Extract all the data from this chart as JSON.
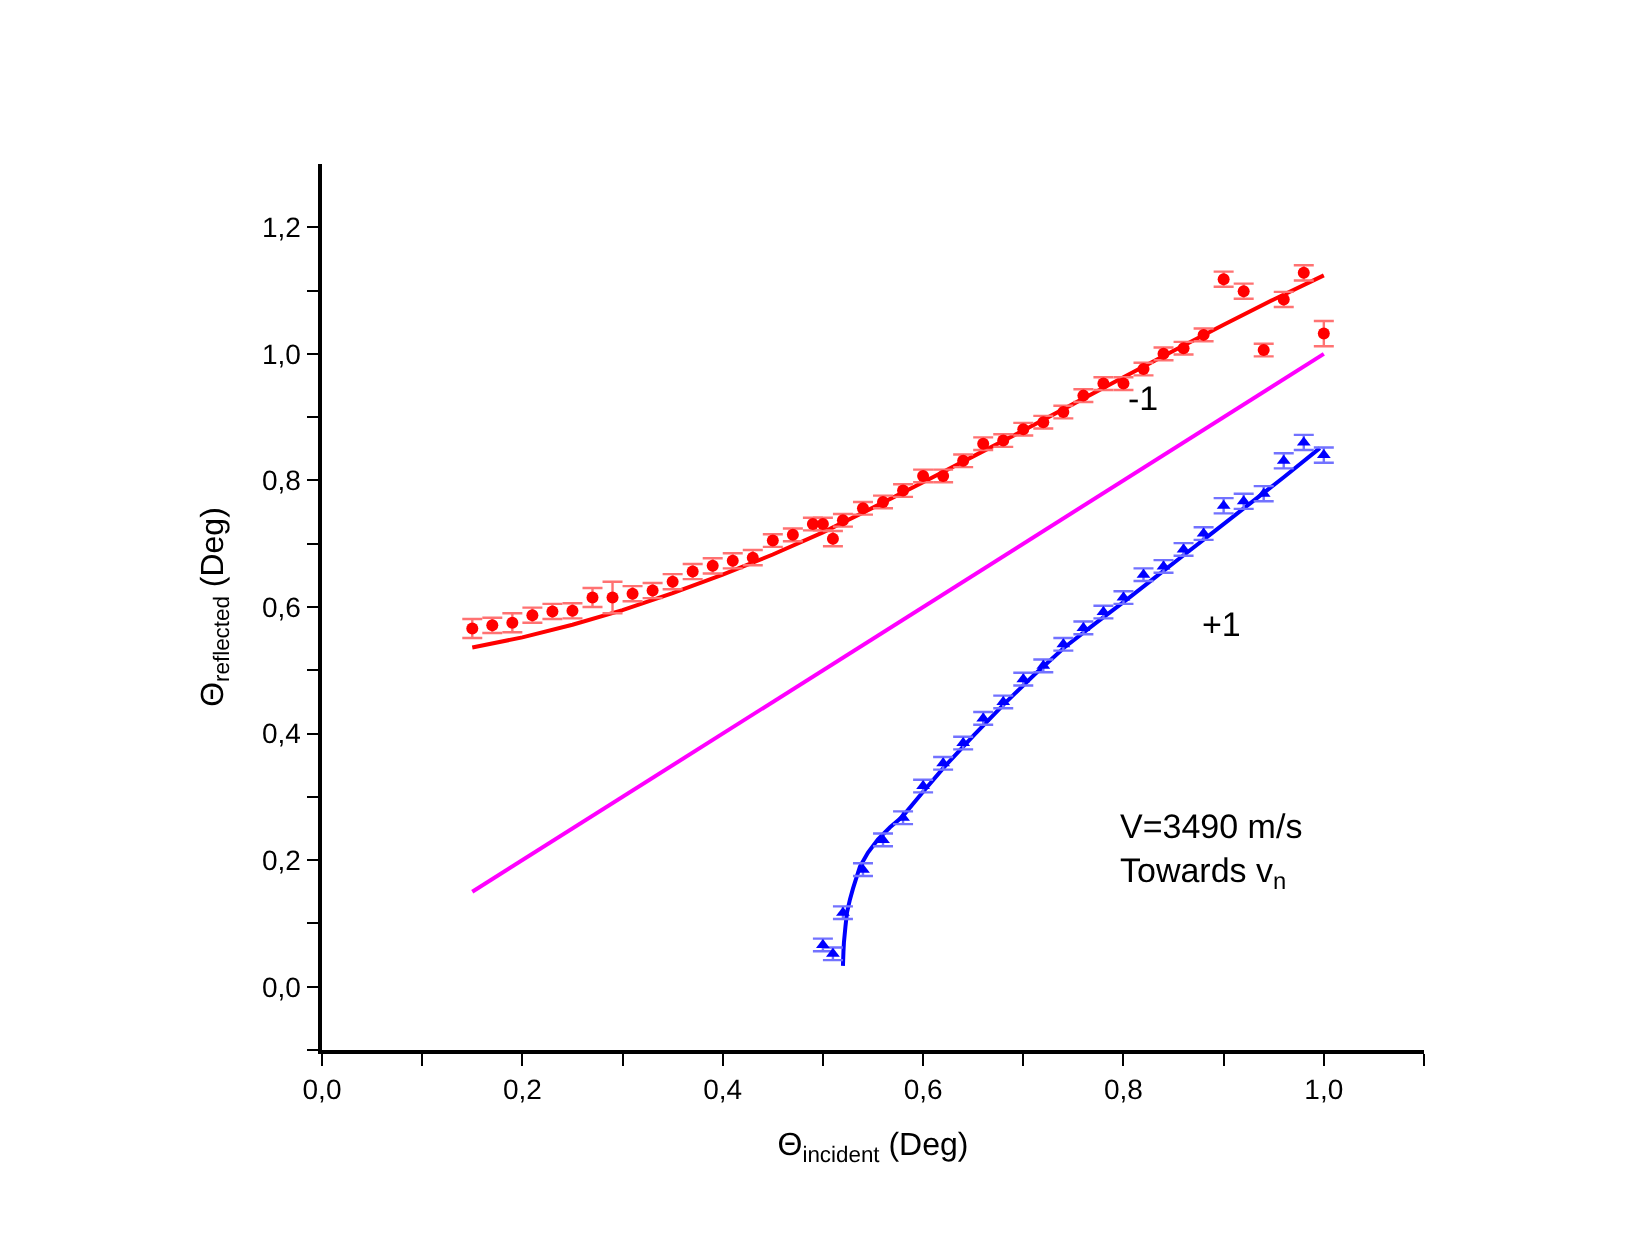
{
  "chart_data": {
    "type": "scatter",
    "xlabel": "Θ$_{incident}$ (Deg)",
    "ylabel": "Θ$_{reflected}$ (Deg)",
    "xlim": [
      0,
      1.1
    ],
    "ylim": [
      -0.1,
      1.3
    ],
    "xticks": [
      {
        "value": 0,
        "label": "0,0"
      },
      {
        "value": 0.1,
        "label": null
      },
      {
        "value": 0.2,
        "label": "0,2"
      },
      {
        "value": 0.3,
        "label": null
      },
      {
        "value": 0.4,
        "label": "0,4"
      },
      {
        "value": 0.5,
        "label": null
      },
      {
        "value": 0.6,
        "label": "0,6"
      },
      {
        "value": 0.7,
        "label": null
      },
      {
        "value": 0.8,
        "label": "0,8"
      },
      {
        "value": 0.9,
        "label": null
      },
      {
        "value": 1.0,
        "label": "1,0"
      },
      {
        "value": 1.1,
        "label": null
      }
    ],
    "yticks": [
      {
        "value": -0.1,
        "label": null
      },
      {
        "value": 0,
        "label": "0,0"
      },
      {
        "value": 0.1,
        "label": null
      },
      {
        "value": 0.2,
        "label": "0,2"
      },
      {
        "value": 0.3,
        "label": null
      },
      {
        "value": 0.4,
        "label": "0,4"
      },
      {
        "value": 0.5,
        "label": null
      },
      {
        "value": 0.6,
        "label": "0,6"
      },
      {
        "value": 0.7,
        "label": null
      },
      {
        "value": 0.8,
        "label": "0,8"
      },
      {
        "value": 0.9,
        "label": null
      },
      {
        "value": 1.0,
        "label": "1,0"
      },
      {
        "value": 1.1,
        "label": null
      },
      {
        "value": 1.2,
        "label": "1,2"
      }
    ],
    "series": [
      {
        "marker": "circle",
        "color": "#ff0000",
        "x": [
          0.15,
          0.17,
          0.19,
          0.21,
          0.23,
          0.25,
          0.27,
          0.29,
          0.31,
          0.33,
          0.35,
          0.37,
          0.39,
          0.41,
          0.43,
          0.45,
          0.47,
          0.49,
          0.5,
          0.51,
          0.52,
          0.54,
          0.56,
          0.58,
          0.6,
          0.62,
          0.64,
          0.66,
          0.68,
          0.7,
          0.72,
          0.74,
          0.76,
          0.78,
          0.8,
          0.82,
          0.84,
          0.86,
          0.88,
          0.9,
          0.92,
          0.94,
          0.96,
          0.98,
          1.0
        ],
        "values": [
          0.566,
          0.571,
          0.575,
          0.587,
          0.593,
          0.594,
          0.615,
          0.615,
          0.621,
          0.626,
          0.64,
          0.656,
          0.665,
          0.673,
          0.678,
          0.705,
          0.714,
          0.731,
          0.731,
          0.708,
          0.737,
          0.756,
          0.766,
          0.784,
          0.807,
          0.807,
          0.831,
          0.858,
          0.863,
          0.881,
          0.892,
          0.908,
          0.934,
          0.953,
          0.953,
          0.976,
          1.0,
          1.009,
          1.03,
          1.118,
          1.099,
          1.006,
          1.086,
          1.128,
          1.032
        ],
        "errors": [
          0.015,
          0.012,
          0.015,
          0.012,
          0.012,
          0.012,
          0.015,
          0.025,
          0.012,
          0.012,
          0.012,
          0.012,
          0.012,
          0.012,
          0.012,
          0.01,
          0.01,
          0.01,
          0.01,
          0.012,
          0.01,
          0.01,
          0.01,
          0.01,
          0.01,
          0.01,
          0.01,
          0.01,
          0.01,
          0.01,
          0.01,
          0.01,
          0.01,
          0.01,
          0.01,
          0.01,
          0.01,
          0.01,
          0.01,
          0.012,
          0.012,
          0.01,
          0.012,
          0.012,
          0.02
        ]
      },
      {
        "type": "line",
        "marker": "none",
        "color": "#ff0000",
        "x": [
          0.15,
          0.2,
          0.25,
          0.3,
          0.35,
          0.4,
          0.45,
          0.5,
          0.55,
          0.6,
          0.65,
          0.7,
          0.75,
          0.8,
          0.85,
          0.9,
          0.95,
          1.0
        ],
        "values": [
          0.536,
          0.552,
          0.572,
          0.595,
          0.622,
          0.651,
          0.683,
          0.718,
          0.757,
          0.797,
          0.838,
          0.879,
          0.921,
          0.963,
          1.005,
          1.046,
          1.086,
          1.124
        ]
      },
      {
        "type": "line",
        "marker": "none",
        "color": "#ff00ff",
        "x": [
          0.15,
          1.0
        ],
        "values": [
          0.15,
          1.0
        ]
      },
      {
        "marker": "triangle",
        "color": "#0000ff",
        "x": [
          0.5,
          0.51,
          0.52,
          0.54,
          0.56,
          0.58,
          0.6,
          0.62,
          0.64,
          0.66,
          0.68,
          0.7,
          0.72,
          0.74,
          0.76,
          0.78,
          0.8,
          0.82,
          0.84,
          0.86,
          0.88,
          0.9,
          0.92,
          0.94,
          0.96,
          0.98,
          1.0
        ],
        "values": [
          0.066,
          0.052,
          0.117,
          0.185,
          0.232,
          0.267,
          0.317,
          0.353,
          0.385,
          0.424,
          0.45,
          0.486,
          0.507,
          0.541,
          0.567,
          0.592,
          0.615,
          0.651,
          0.664,
          0.691,
          0.716,
          0.76,
          0.767,
          0.779,
          0.831,
          0.86,
          0.84
        ],
        "errors": [
          0.01,
          0.01,
          0.01,
          0.01,
          0.01,
          0.01,
          0.01,
          0.01,
          0.01,
          0.01,
          0.01,
          0.01,
          0.01,
          0.01,
          0.01,
          0.01,
          0.01,
          0.01,
          0.01,
          0.01,
          0.01,
          0.012,
          0.012,
          0.012,
          0.012,
          0.012,
          0.012
        ]
      },
      {
        "type": "line",
        "marker": "none",
        "color": "#0000ff",
        "x": [
          0.52,
          0.5205,
          0.521,
          0.5225,
          0.524,
          0.527,
          0.53,
          0.537,
          0.545,
          0.555,
          0.567,
          0.579,
          0.6,
          0.621,
          0.651,
          0.681,
          0.711,
          0.741,
          0.771,
          0.801,
          0.831,
          0.861,
          0.891,
          0.921,
          0.96,
          0.996
        ],
        "values": [
          0.033,
          0.055,
          0.07,
          0.095,
          0.117,
          0.138,
          0.155,
          0.19,
          0.212,
          0.233,
          0.252,
          0.268,
          0.308,
          0.347,
          0.398,
          0.447,
          0.493,
          0.536,
          0.573,
          0.609,
          0.646,
          0.683,
          0.72,
          0.757,
          0.805,
          0.851
        ]
      }
    ],
    "annotations": [
      "-1",
      "+1",
      "V=3490 m/s\nTowards v$_{n}$"
    ]
  }
}
